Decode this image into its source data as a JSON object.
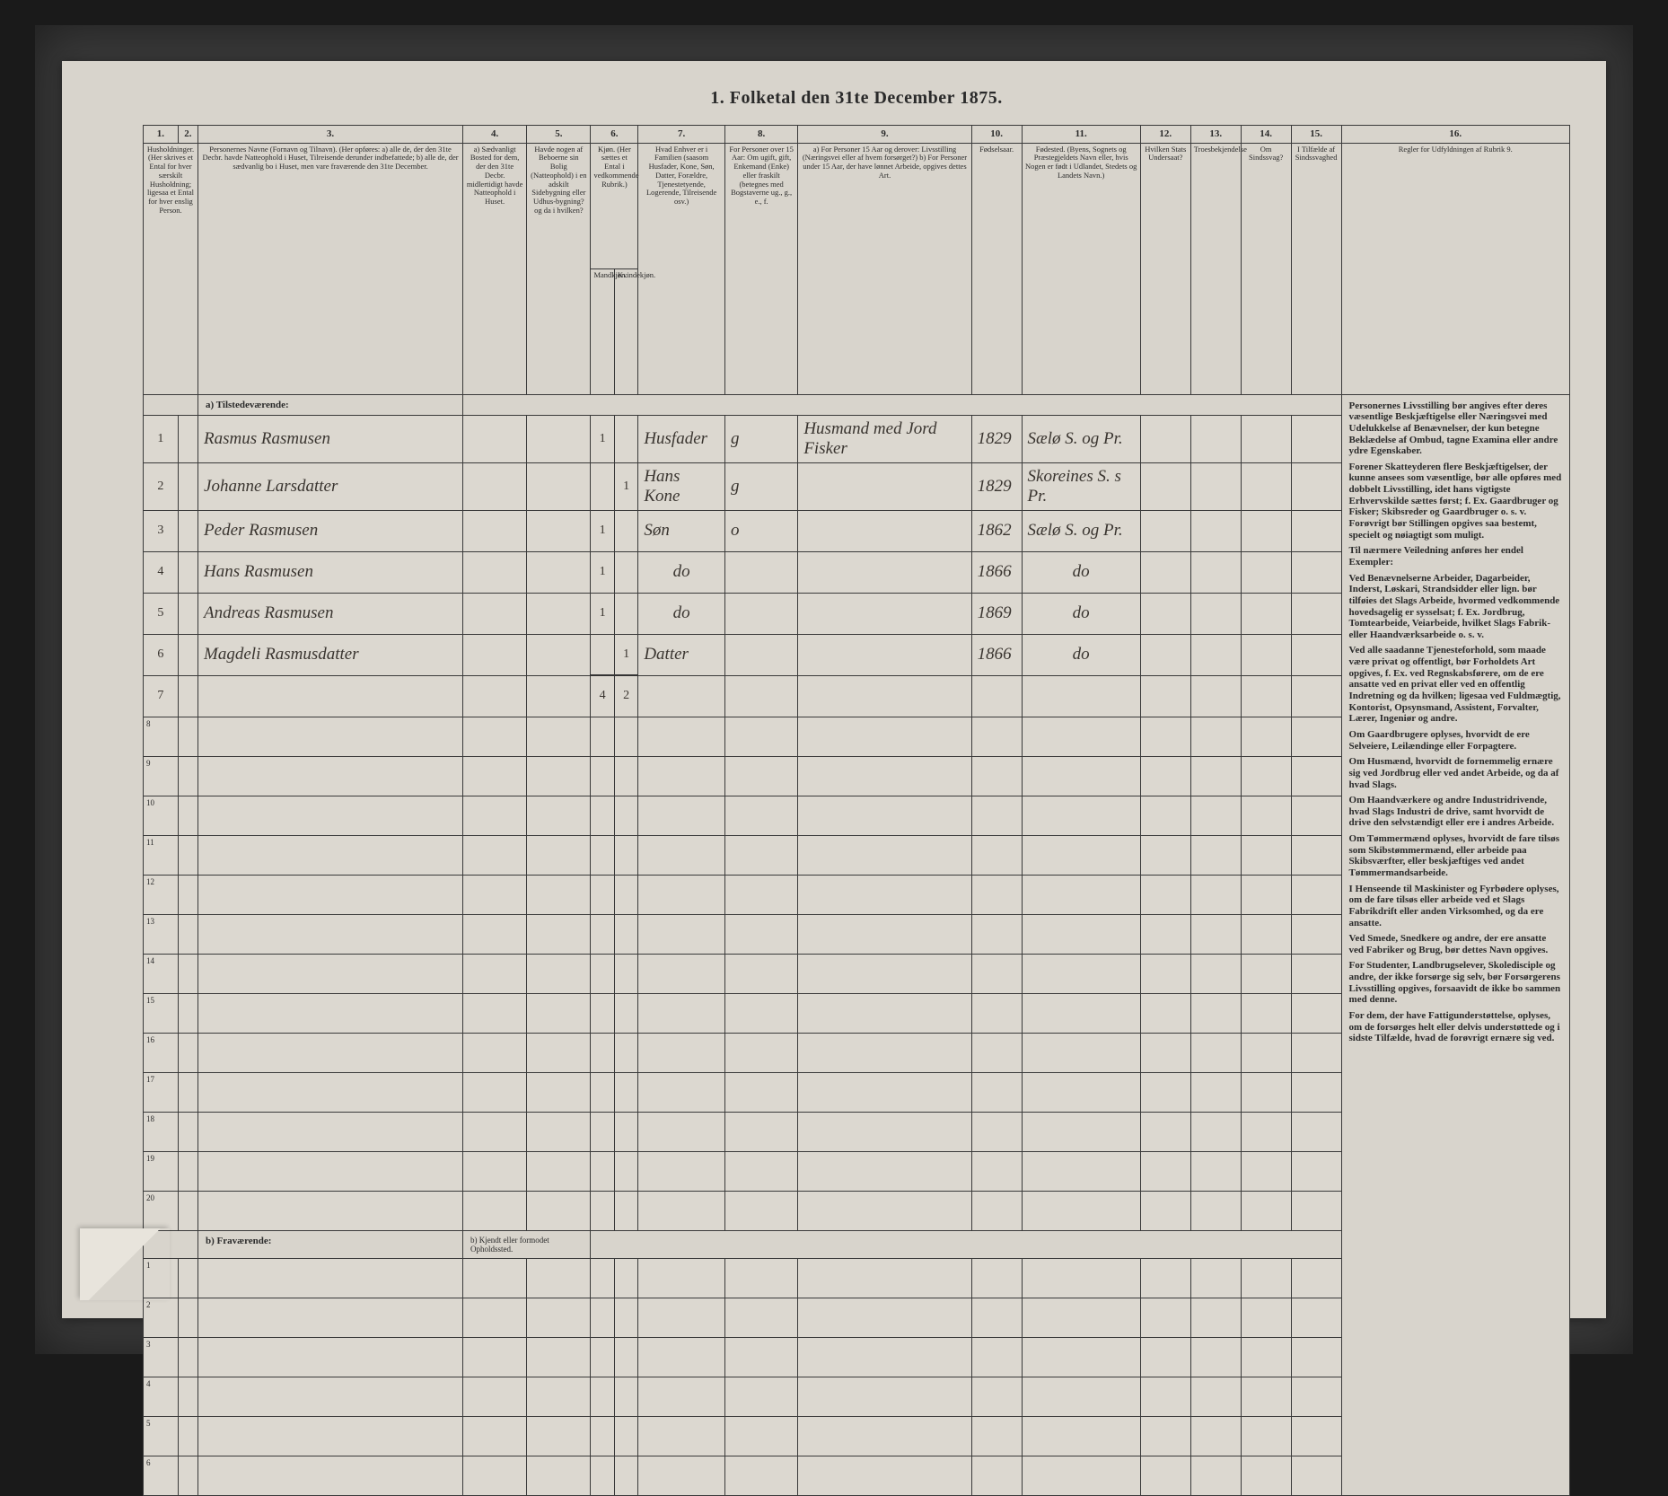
{
  "title": "1. Folketal den 31te December 1875.",
  "columns": {
    "nums": [
      "1.",
      "2.",
      "3.",
      "4.",
      "5.",
      "6.",
      "7.",
      "8.",
      "9.",
      "10.",
      "11.",
      "12.",
      "13.",
      "14.",
      "15.",
      "16."
    ],
    "h1": "Husholdninger. (Her skrives et Ental for hver særskilt Husholdning; ligesaa et Ental for hver enslig Person.",
    "h3": "Personernes Navne (Fornavn og Tilnavn). (Her opføres: a) alle de, der den 31te Decbr. havde Natteophold i Huset, Tilreisende derunder indbefattede; b) alle de, der sædvanlig bo i Huset, men vare fraværende den 31te December.",
    "h4": "a) Sædvanligt Bosted for dem, der den 31te Decbr. midlertidigt havde Natteophold i Huset.",
    "h5": "Havde nogen af Beboerne sin Bolig (Natteophold) i en adskilt Sidebygning eller Udhus-bygning? og da i hvilken?",
    "h6": "Kjøn. (Her sættes et Ental i vedkommende Rubrik.)",
    "h6a": "Mandkjøn.",
    "h6b": "Kvindekjøn.",
    "h7": "Hvad Enhver er i Familien (saasom Husfader, Kone, Søn, Datter, Forældre, Tjenestetyende, Logerende, Tilreisende osv.)",
    "h8": "For Personer over 15 Aar: Om ugift, gift, Enkemand (Enke) eller fraskilt (betegnes med Bogstaverne ug., g., e., f.",
    "h9": "a) For Personer 15 Aar og derover: Livsstilling (Næringsvei eller af hvem forsørget?) b) For Personer under 15 Aar, der have lønnet Arbeide, opgives dettes Art.",
    "h10": "Fødselsaar.",
    "h11": "Fødested. (Byens, Sognets og Præstegjeldets Navn eller, hvis Nogen er født i Udlandet, Stedets og Landets Navn.)",
    "h12": "Hvilken Stats Undersaat?",
    "h13": "Troesbekjendelse",
    "h14": "Om Sindssvag?",
    "h15": "I Tilfælde af Sindssvaghed",
    "h16": "Regler for Udfyldningen af Rubrik 9."
  },
  "sections": {
    "a": "a) Tilstedeværende:",
    "b": "b) Fraværende:",
    "b_extra": "b) Kjendt eller formodet Opholdssted."
  },
  "rows": [
    {
      "n": "1",
      "name": "Rasmus Rasmusen",
      "m": "1",
      "k": "",
      "rel": "Husfader",
      "ms": "g",
      "occ": "Husmand med Jord Fisker",
      "yr": "1829",
      "bp": "Sælø S. og Pr."
    },
    {
      "n": "2",
      "name": "Johanne Larsdatter",
      "m": "",
      "k": "1",
      "rel": "Hans Kone",
      "ms": "g",
      "occ": "",
      "yr": "1829",
      "bp": "Skoreines S. s Pr."
    },
    {
      "n": "3",
      "name": "Peder Rasmusen",
      "m": "1",
      "k": "",
      "rel": "Søn",
      "ms": "o",
      "occ": "",
      "yr": "1862",
      "bp": "Sælø S. og Pr."
    },
    {
      "n": "4",
      "name": "Hans Rasmusen",
      "m": "1",
      "k": "",
      "rel": "do",
      "ms": "",
      "occ": "",
      "yr": "1866",
      "bp": "do"
    },
    {
      "n": "5",
      "name": "Andreas Rasmusen",
      "m": "1",
      "k": "",
      "rel": "do",
      "ms": "",
      "occ": "",
      "yr": "1869",
      "bp": "do"
    },
    {
      "n": "6",
      "name": "Magdeli Rasmusdatter",
      "m": "",
      "k": "1",
      "rel": "Datter",
      "ms": "",
      "occ": "",
      "yr": "1866",
      "bp": "do"
    }
  ],
  "totals": {
    "m": "4",
    "k": "2"
  },
  "rules": [
    "Personernes Livsstilling bør angives efter deres væsentlige Beskjæftigelse eller Næringsvei med Udelukkelse af Benævnelser, der kun betegne Beklædelse af Ombud, tagne Examina eller andre ydre Egenskaber.",
    "Forener Skatteyderen flere Beskjæftigelser, der kunne ansees som væsentlige, bør alle opføres med dobbelt Livsstilling, idet hans vigtigste Erhvervskilde sættes først; f. Ex. Gaardbruger og Fisker; Skibsreder og Gaardbruger o. s. v. Forøvrigt bør Stillingen opgives saa bestemt, specielt og nøiagtigt som muligt.",
    "Til nærmere Veiledning anføres her endel Exempler:",
    "Ved Benævnelserne Arbeider, Dagarbeider, Inderst, Løskari, Strandsidder eller lign. bør tilføies det Slags Arbeide, hvormed vedkommende hovedsagelig er sysselsat; f. Ex. Jordbrug, Tomtearbeide, Veiarbeide, hvilket Slags Fabrik- eller Haandværksarbeide o. s. v.",
    "Ved alle saadanne Tjenesteforhold, som maade være privat og offentligt, bør Forholdets Art opgives, f. Ex. ved Regnskabsførere, om de ere ansatte ved en privat eller ved en offentlig Indretning og da hvilken; ligesaa ved Fuldmægtig, Kontorist, Opsynsmand, Assistent, Forvalter, Lærer, Ingeniør og andre.",
    "Om Gaardbrugere oplyses, hvorvidt de ere Selveiere, Leilændinge eller Forpagtere.",
    "Om Husmænd, hvorvidt de fornemmelig ernære sig ved Jordbrug eller ved andet Arbeide, og da af hvad Slags.",
    "Om Haandværkere og andre Industridrivende, hvad Slags Industri de drive, samt hvorvidt de drive den selvstændigt eller ere i andres Arbeide.",
    "Om Tømmermænd oplyses, hvorvidt de fare tilsøs som Skibstømmermænd, eller arbeide paa Skibsværfter, eller beskjæftiges ved andet Tømmermandsarbeide.",
    "I Henseende til Maskinister og Fyrbødere oplyses, om de fare tilsøs eller arbeide ved et Slags Fabrikdrift eller anden Virksomhed, og da ere ansatte.",
    "Ved Smede, Snedkere og andre, der ere ansatte ved Fabriker og Brug, bør dettes Navn opgives.",
    "For Studenter, Landbrugselever, Skoledisciple og andre, der ikke forsørge sig selv, bør Forsørgerens Livsstilling opgives, forsaavidt de ikke bo sammen med denne.",
    "For dem, der have Fattigunderstøttelse, oplyses, om de forsørges helt eller delvis understøttede og i sidste Tilfælde, hvad de forøvrigt ernære sig ved."
  ]
}
